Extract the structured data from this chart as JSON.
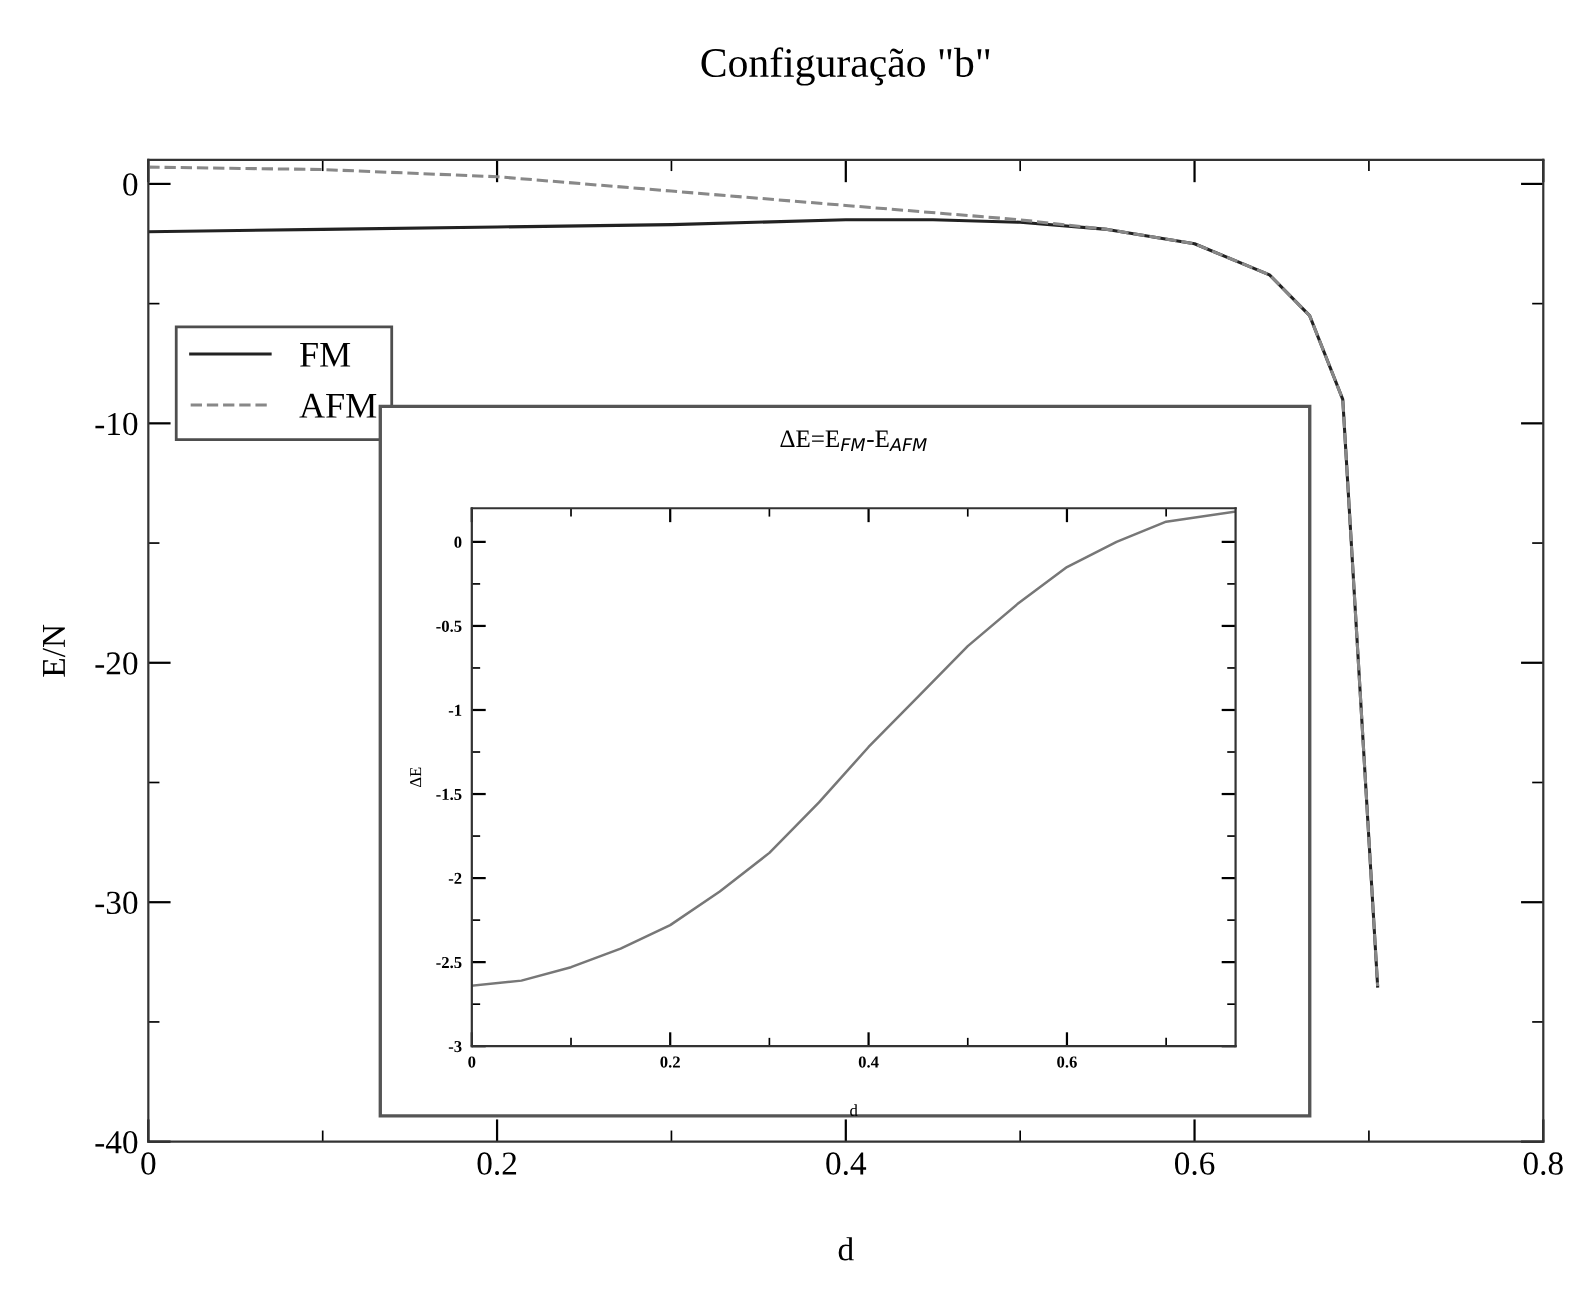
{
  "chart_data": [
    {
      "type": "line",
      "title": "Configuração \"b\"",
      "xlabel": "d",
      "ylabel": "E/N",
      "legend": "top left",
      "xlim": [
        0,
        0.8
      ],
      "ylim": [
        -40,
        1
      ],
      "xticks": [
        0,
        {
          "value": 0.1,
          "label": null
        },
        0.2,
        {
          "value": 0.3,
          "label": null
        },
        0.4,
        {
          "value": 0.5,
          "label": null
        },
        0.6,
        {
          "value": 0.7,
          "label": null
        },
        0.8
      ],
      "yticks": [
        -40,
        {
          "value": -35,
          "label": null
        },
        -30,
        {
          "value": -25,
          "label": null
        },
        -20,
        {
          "value": -15,
          "label": null
        },
        -10,
        {
          "value": -5,
          "label": null
        },
        0
      ],
      "series": [
        {
          "name": "FM",
          "color": "#222222",
          "line_style": "solid",
          "x": [
            0,
            0.1,
            0.2,
            0.3,
            0.4,
            0.45,
            0.5,
            0.55,
            0.6,
            0.643,
            0.666,
            0.685,
            0.705
          ],
          "values": [
            -2.0,
            -1.9,
            -1.8,
            -1.7,
            -1.5,
            -1.5,
            -1.6,
            -1.9,
            -2.5,
            -3.8,
            -5.5,
            -9.0,
            -33.5
          ]
        },
        {
          "name": "AFM",
          "color": "#888888",
          "line_style": "dashed",
          "x": [
            0,
            0.1,
            0.2,
            0.3,
            0.4,
            0.5,
            0.55,
            0.6,
            0.643,
            0.666,
            0.685,
            0.705
          ],
          "values": [
            0.7,
            0.6,
            0.3,
            -0.3,
            -0.9,
            -1.5,
            -1.9,
            -2.5,
            -3.8,
            -5.5,
            -9.0,
            -33.5
          ]
        }
      ]
    },
    {
      "type": "line",
      "title": "ΔE=E$_{FM}$-E$_{AFM}$",
      "xlabel": "d",
      "ylabel": "ΔE",
      "xlim": [
        0,
        0.77
      ],
      "ylim": [
        -3,
        0.2
      ],
      "xticks": [
        0,
        {
          "value": 0.1,
          "label": null
        },
        0.2,
        {
          "value": 0.3,
          "label": null
        },
        0.4,
        {
          "value": 0.5,
          "label": null
        },
        0.6,
        {
          "value": 0.7,
          "label": null
        }
      ],
      "yticks": [
        -3,
        {
          "value": -2.75,
          "label": null
        },
        -2.5,
        {
          "value": -2.25,
          "label": null
        },
        -2,
        {
          "value": -1.75,
          "label": null
        },
        -1.5,
        {
          "value": -1.25,
          "label": null
        },
        -1,
        {
          "value": -0.75,
          "label": null
        },
        -0.5,
        {
          "value": -0.25,
          "label": null
        },
        0
      ],
      "series": [
        {
          "color": "#777777",
          "line_style": "solid",
          "x": [
            0,
            0.05,
            0.1,
            0.15,
            0.2,
            0.25,
            0.3,
            0.35,
            0.4,
            0.45,
            0.5,
            0.55,
            0.6,
            0.65,
            0.7,
            0.77
          ],
          "values": [
            -2.64,
            -2.61,
            -2.53,
            -2.42,
            -2.28,
            -2.08,
            -1.85,
            -1.55,
            -1.22,
            -0.92,
            -0.62,
            -0.37,
            -0.15,
            0.0,
            0.12,
            0.18
          ]
        }
      ]
    }
  ]
}
